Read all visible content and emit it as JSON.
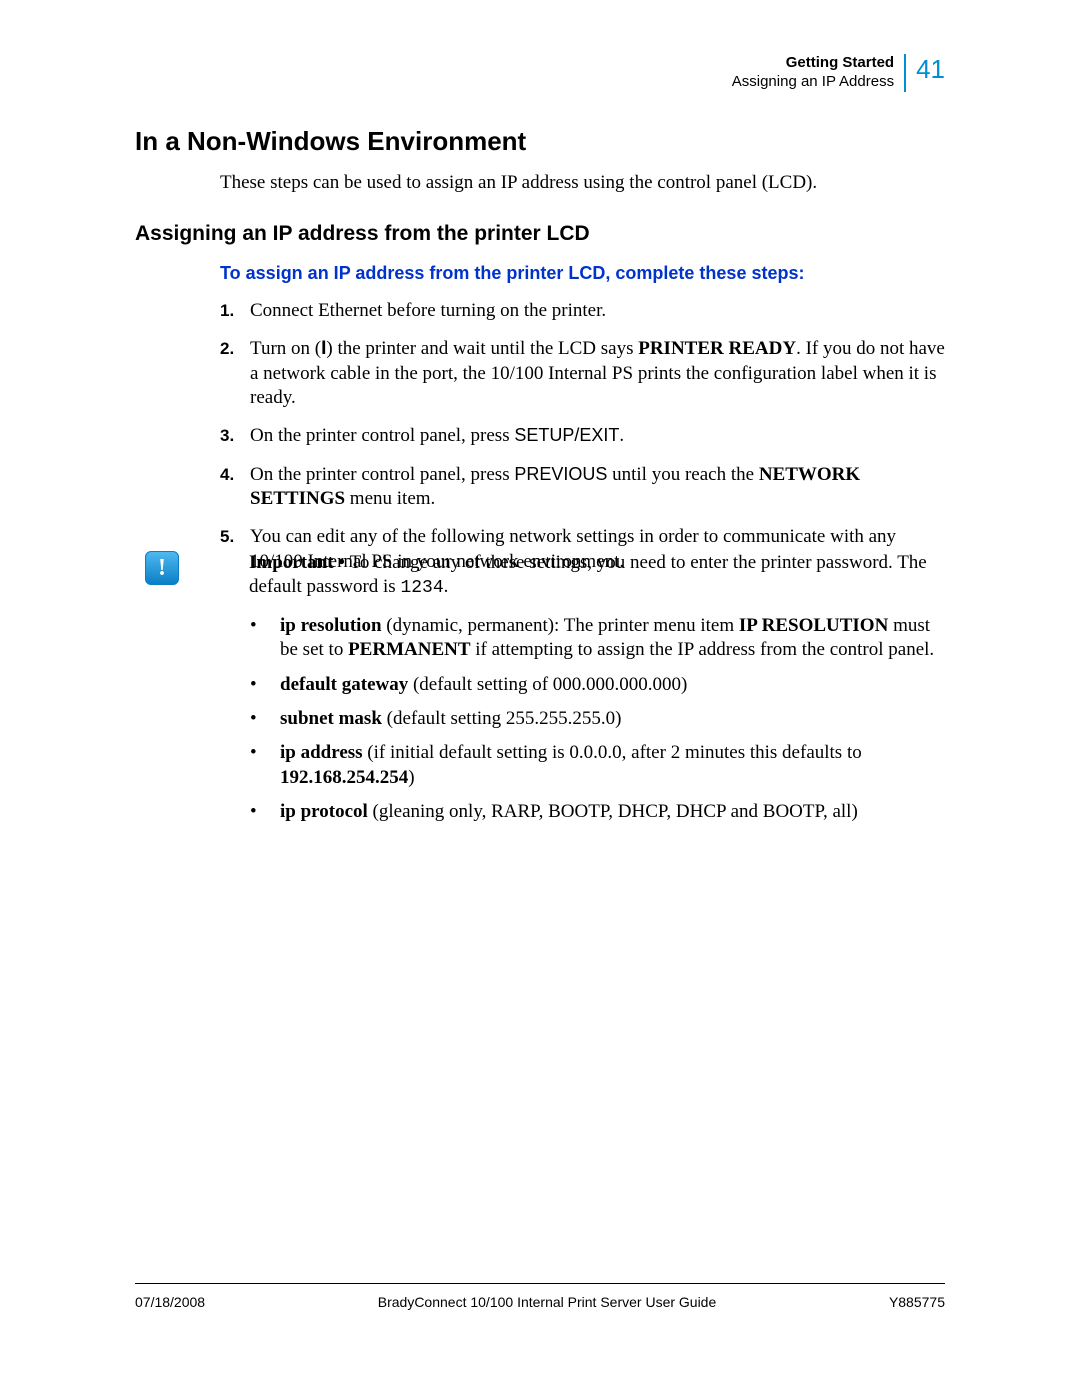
{
  "header": {
    "chapter": "Getting Started",
    "section": "Assigning an IP Address",
    "page_number": "41",
    "accent_color": "#008fd5"
  },
  "heading_main": "In a Non-Windows Environment",
  "intro": "These steps can be used to assign an IP address using the control panel (LCD).",
  "heading_sub": "Assigning an IP address from the printer LCD",
  "heading_task": "To assign an IP address from the printer LCD, complete these steps:",
  "task_color": "#0033cc",
  "steps": [
    {
      "n": "1.",
      "body": "Connect Ethernet before turning on the printer."
    },
    {
      "n": "2.",
      "pre": "Turn on (",
      "icon": "I",
      "mid": ") the printer and wait until the LCD says ",
      "bold1": "PRINTER READY",
      "post": ". If you do not have a network cable in the port, the 10/100 Internal PS prints the configuration label when it is ready."
    },
    {
      "n": "3.",
      "pre": "On the printer control panel, press ",
      "sans": "SETUP/EXIT",
      "post": "."
    },
    {
      "n": "4.",
      "pre": "On the printer control panel, press ",
      "sans": "PREVIOUS",
      "mid": " until you reach the ",
      "bold1": "NETWORK SETTINGS",
      "post": " menu item."
    },
    {
      "n": "5.",
      "body": "You can edit any of the following network settings in order to communicate with any 10/100 Internal PS in your network environment."
    }
  ],
  "note": {
    "icon_glyph": "!",
    "lead": "Important • ",
    "text1": "To change any of these settings, you need to enter the printer password. The default password is ",
    "code": "1234",
    "text2": "."
  },
  "bullets": [
    {
      "b1": "ip resolution",
      "t1": " (dynamic, permanent): The printer menu item ",
      "b2": "IP RESOLUTION",
      "t2": " must be set to ",
      "b3": "PERMANENT",
      "t3": " if attempting to assign the IP address from the control panel."
    },
    {
      "b1": "default gateway",
      "t1": " (default setting of 000.000.000.000)"
    },
    {
      "b1": "subnet mask",
      "t1": " (default setting 255.255.255.0)"
    },
    {
      "b1": "ip address",
      "t1": " (if initial default setting is 0.0.0.0, after 2 minutes this defaults to ",
      "b2": "192.168.254.254",
      "t2": ")"
    },
    {
      "b1": "ip protocol",
      "t1": " (gleaning only, RARP, BOOTP, DHCP, DHCP and BOOTP, all)"
    }
  ],
  "footer": {
    "date": "07/18/2008",
    "title": "BradyConnect 10/100 Internal Print Server User Guide",
    "docnum": "Y885775"
  }
}
